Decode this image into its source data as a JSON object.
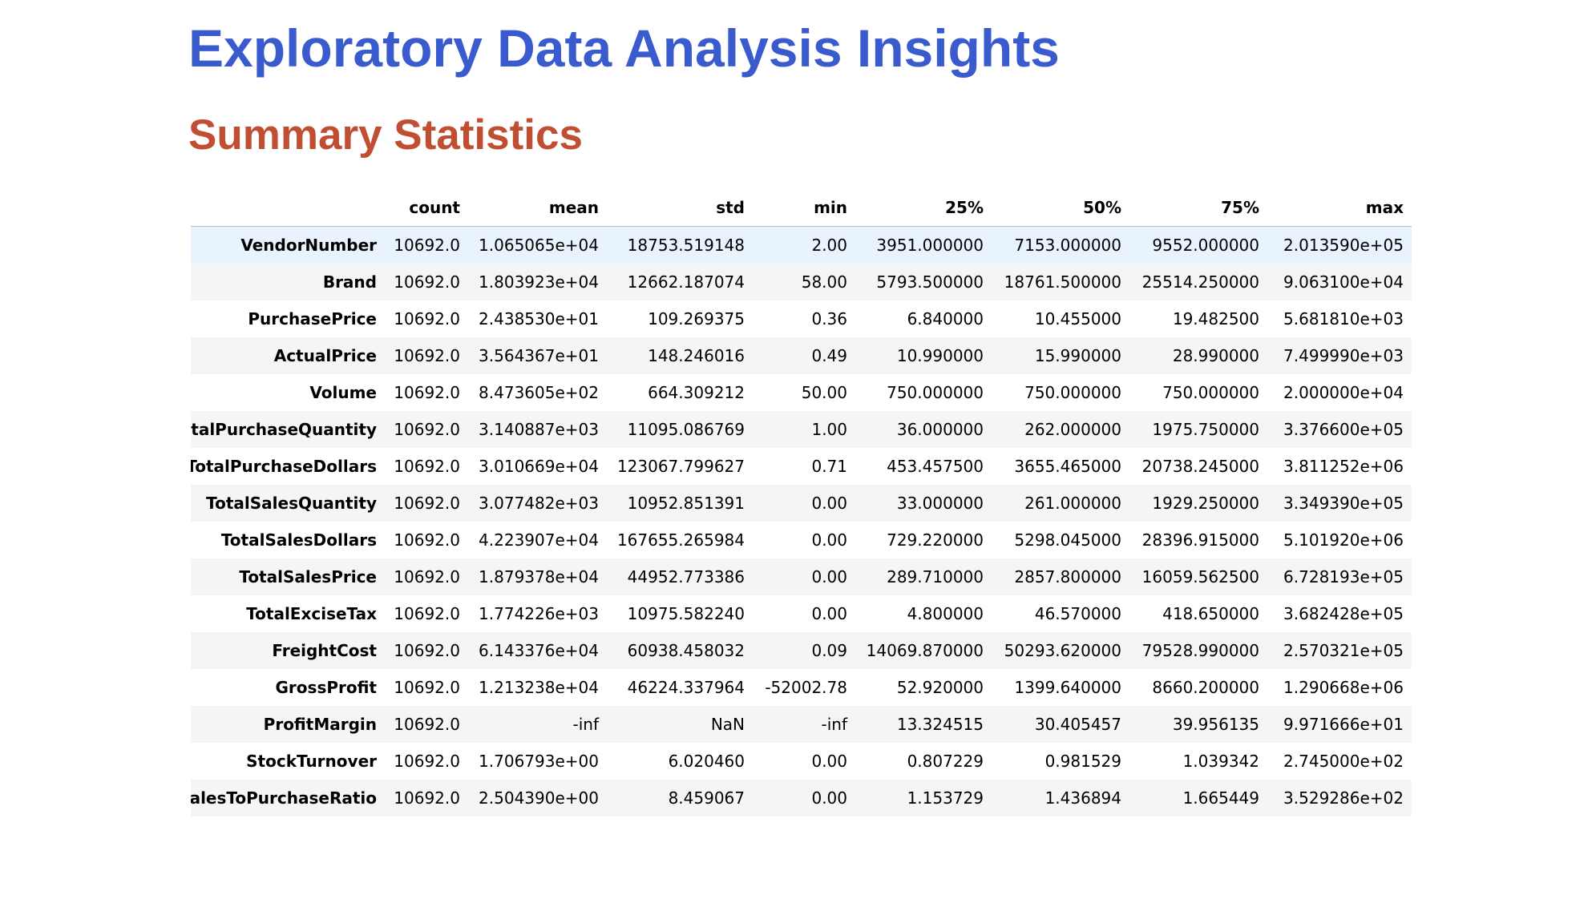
{
  "page": {
    "title": "Exploratory Data Analysis Insights",
    "section_title": "Summary Statistics"
  },
  "table": {
    "index_header": "",
    "columns": [
      "count",
      "mean",
      "std",
      "min",
      "25%",
      "50%",
      "75%",
      "max"
    ],
    "rows": [
      {
        "label": "VendorNumber",
        "values": [
          "10692.0",
          "1.065065e+04",
          "18753.519148",
          "2.00",
          "3951.000000",
          "7153.000000",
          "9552.000000",
          "2.013590e+05"
        ]
      },
      {
        "label": "Brand",
        "values": [
          "10692.0",
          "1.803923e+04",
          "12662.187074",
          "58.00",
          "5793.500000",
          "18761.500000",
          "25514.250000",
          "9.063100e+04"
        ]
      },
      {
        "label": "PurchasePrice",
        "values": [
          "10692.0",
          "2.438530e+01",
          "109.269375",
          "0.36",
          "6.840000",
          "10.455000",
          "19.482500",
          "5.681810e+03"
        ]
      },
      {
        "label": "ActualPrice",
        "values": [
          "10692.0",
          "3.564367e+01",
          "148.246016",
          "0.49",
          "10.990000",
          "15.990000",
          "28.990000",
          "7.499990e+03"
        ]
      },
      {
        "label": "Volume",
        "values": [
          "10692.0",
          "8.473605e+02",
          "664.309212",
          "50.00",
          "750.000000",
          "750.000000",
          "750.000000",
          "2.000000e+04"
        ]
      },
      {
        "label": "TotalPurchaseQuantity",
        "values": [
          "10692.0",
          "3.140887e+03",
          "11095.086769",
          "1.00",
          "36.000000",
          "262.000000",
          "1975.750000",
          "3.376600e+05"
        ]
      },
      {
        "label": "TotalPurchaseDollars",
        "values": [
          "10692.0",
          "3.010669e+04",
          "123067.799627",
          "0.71",
          "453.457500",
          "3655.465000",
          "20738.245000",
          "3.811252e+06"
        ]
      },
      {
        "label": "TotalSalesQuantity",
        "values": [
          "10692.0",
          "3.077482e+03",
          "10952.851391",
          "0.00",
          "33.000000",
          "261.000000",
          "1929.250000",
          "3.349390e+05"
        ]
      },
      {
        "label": "TotalSalesDollars",
        "values": [
          "10692.0",
          "4.223907e+04",
          "167655.265984",
          "0.00",
          "729.220000",
          "5298.045000",
          "28396.915000",
          "5.101920e+06"
        ]
      },
      {
        "label": "TotalSalesPrice",
        "values": [
          "10692.0",
          "1.879378e+04",
          "44952.773386",
          "0.00",
          "289.710000",
          "2857.800000",
          "16059.562500",
          "6.728193e+05"
        ]
      },
      {
        "label": "TotalExciseTax",
        "values": [
          "10692.0",
          "1.774226e+03",
          "10975.582240",
          "0.00",
          "4.800000",
          "46.570000",
          "418.650000",
          "3.682428e+05"
        ]
      },
      {
        "label": "FreightCost",
        "values": [
          "10692.0",
          "6.143376e+04",
          "60938.458032",
          "0.09",
          "14069.870000",
          "50293.620000",
          "79528.990000",
          "2.570321e+05"
        ]
      },
      {
        "label": "GrossProfit",
        "values": [
          "10692.0",
          "1.213238e+04",
          "46224.337964",
          "-52002.78",
          "52.920000",
          "1399.640000",
          "8660.200000",
          "1.290668e+06"
        ]
      },
      {
        "label": "ProfitMargin",
        "values": [
          "10692.0",
          "-inf",
          "NaN",
          "-inf",
          "13.324515",
          "30.405457",
          "39.956135",
          "9.971666e+01"
        ]
      },
      {
        "label": "StockTurnover",
        "values": [
          "10692.0",
          "1.706793e+00",
          "6.020460",
          "0.00",
          "0.807229",
          "0.981529",
          "1.039342",
          "2.745000e+02"
        ]
      },
      {
        "label": "SalesToPurchaseRatio",
        "values": [
          "10692.0",
          "2.504390e+00",
          "8.459067",
          "0.00",
          "1.153729",
          "1.436894",
          "1.665449",
          "3.529286e+02"
        ]
      }
    ],
    "highlighted_row": 0
  },
  "colors": {
    "title": "#3a5bcd",
    "section_title": "#c04e32",
    "row_even": "#f5f5f5",
    "row_highlight": "#e8f3fd"
  }
}
